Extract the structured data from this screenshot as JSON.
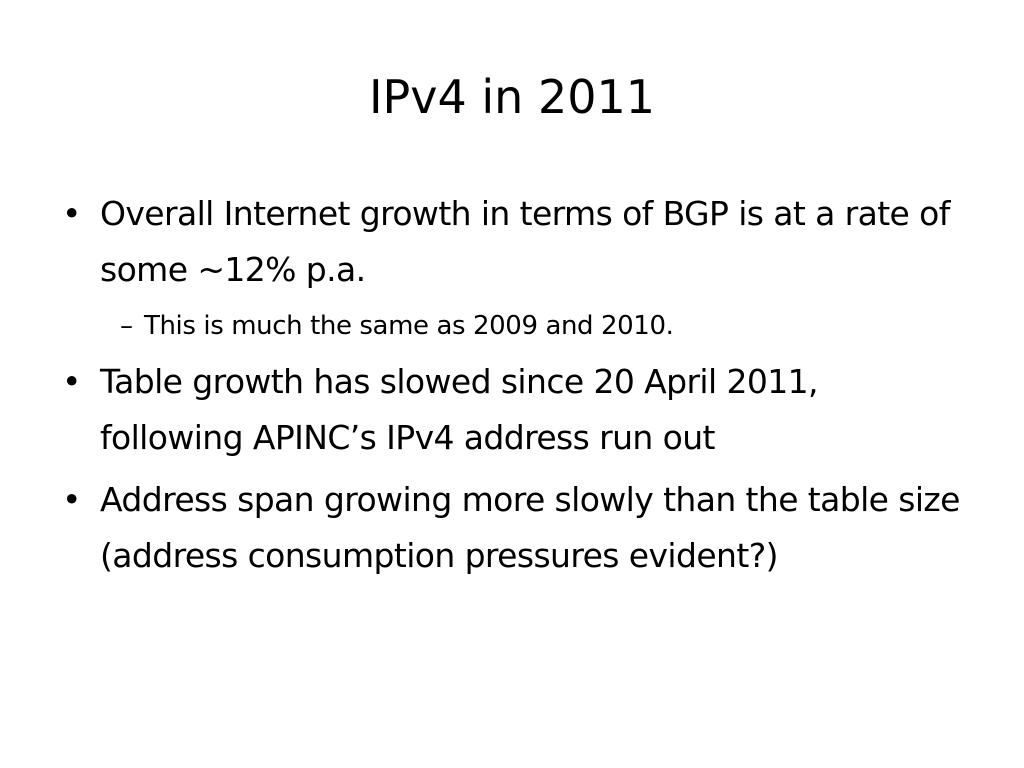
{
  "slide": {
    "title": "IPv4 in 2011",
    "bullet_marker": "•",
    "sub_marker": "–",
    "bullets": [
      {
        "text": "Overall Internet growth in terms of BGP is at a rate of some ~12% p.a.",
        "sub": [
          "This is much the same as 2009 and 2010."
        ]
      },
      {
        "text": "Table growth has slowed since 20 April 2011, following APINC’s IPv4 address run out"
      },
      {
        "text": "Address span growing more slowly than the table size (address consumption pressures evident?)"
      }
    ]
  }
}
